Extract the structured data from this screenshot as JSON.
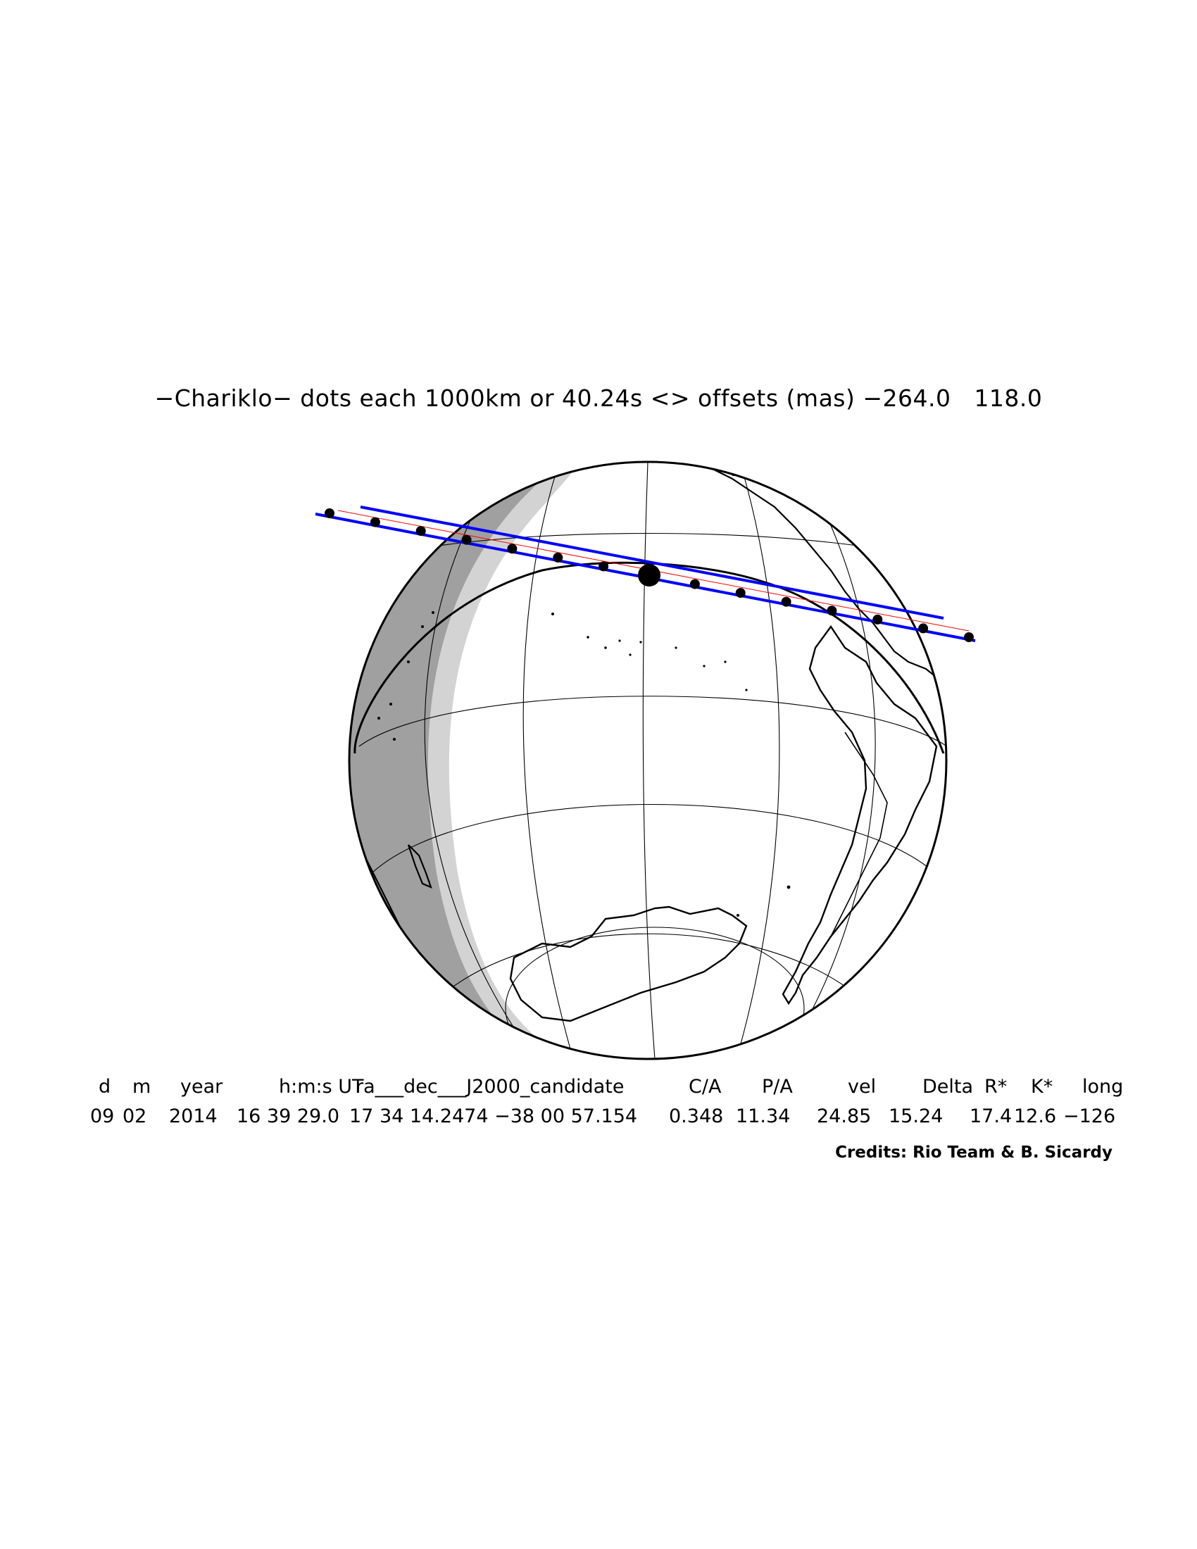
{
  "title": "−Chariklo− dots each 1000km or 40.24s <> offsets (mas) −264.0   118.0",
  "map": {
    "projection": "orthographic",
    "night_shade_color": "#a0a0a0",
    "twilight_shade_color": "#d3d3d3",
    "path_color": "#0000ff",
    "center_line_color": "#ff0000",
    "dot_color": "#000000",
    "dot_count": 15
  },
  "table": {
    "headers": [
      "d",
      "m",
      "year",
      "h:m:s UT",
      "ra___dec___J2000_candidate",
      "C/A",
      "P/A",
      "vel",
      "Delta",
      "R*",
      "K*",
      "long"
    ],
    "values": [
      "09",
      "02",
      "2014",
      "16 39 29.0",
      "17 34 14.2474 −38 00 57.154",
      "0.348",
      "11.34",
      "24.85",
      "15.24",
      "17.4",
      "12.6",
      "−126"
    ]
  },
  "credits": "Credits: Rio Team & B. Sicardy"
}
